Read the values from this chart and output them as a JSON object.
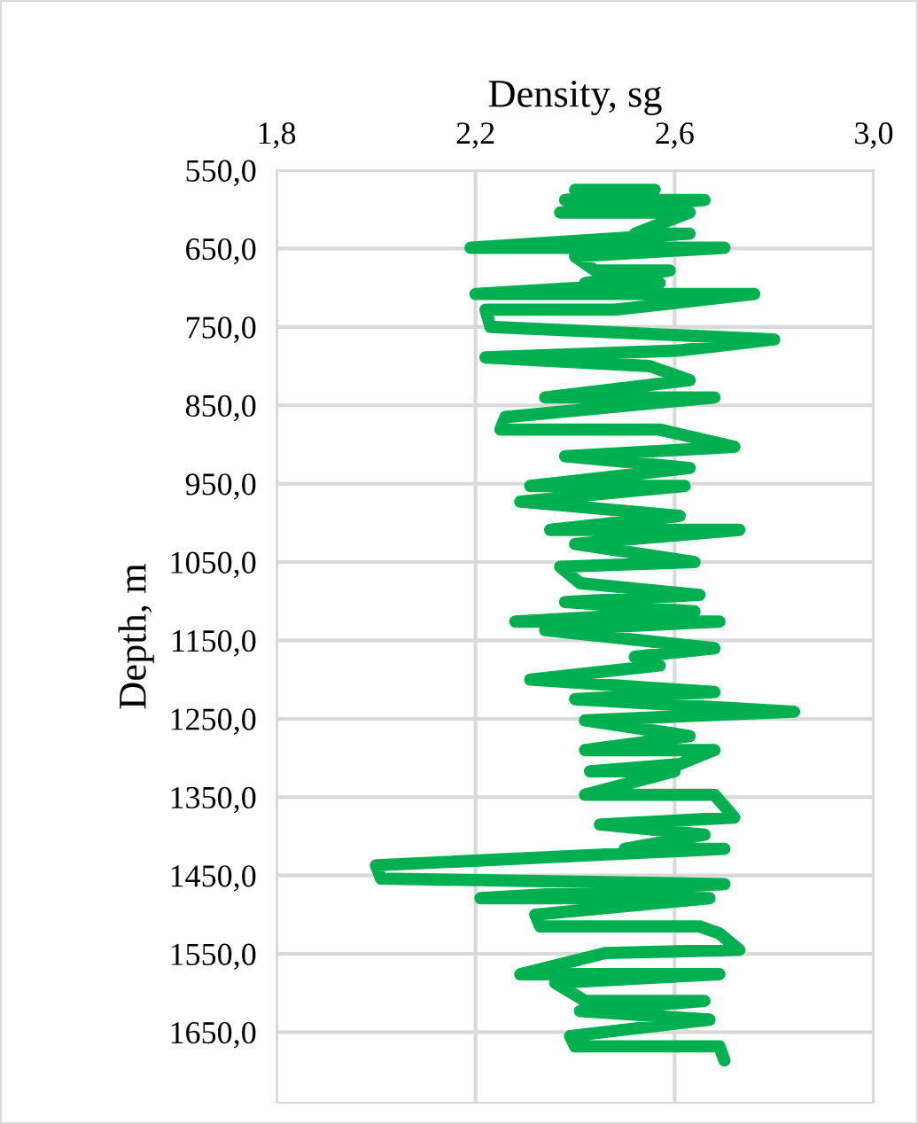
{
  "chart_data": {
    "type": "line",
    "xlabel": "Density, sg",
    "ylabel": "Depth, m",
    "xlim": [
      1.8,
      3.0
    ],
    "xticks": [
      {
        "value": 1.8,
        "label": "1,8"
      },
      {
        "value": 2.2,
        "label": "2,2"
      },
      {
        "value": 2.6,
        "label": "2,6"
      },
      {
        "value": 3.0,
        "label": "3,0"
      }
    ],
    "ylim": [
      1740,
      550
    ],
    "yticks": [
      {
        "value": 550,
        "label": "550,0"
      },
      {
        "value": 650,
        "label": "650,0"
      },
      {
        "value": 750,
        "label": "750,0"
      },
      {
        "value": 850,
        "label": "850,0"
      },
      {
        "value": 950,
        "label": "950,0"
      },
      {
        "value": 1050,
        "label": "1050,0"
      },
      {
        "value": 1150,
        "label": "1150,0"
      },
      {
        "value": 1250,
        "label": "1250,0"
      },
      {
        "value": 1350,
        "label": "1350,0"
      },
      {
        "value": 1450,
        "label": "1450,0"
      },
      {
        "value": 1550,
        "label": "1550,0"
      },
      {
        "value": 1650,
        "label": "1650,0"
      }
    ],
    "grid": true,
    "legend": false,
    "marker": "none",
    "line_style": "solid",
    "series": [
      {
        "color": "#00b050",
        "x": [
          2.4,
          2.56,
          2.38,
          2.66,
          2.37,
          2.63,
          2.52,
          2.63,
          2.19,
          2.7,
          2.4,
          2.44,
          2.59,
          2.42,
          2.57,
          2.2,
          2.76,
          2.48,
          2.22,
          2.23,
          2.8,
          2.61,
          2.22,
          2.55,
          2.63,
          2.34,
          2.68,
          2.26,
          2.25,
          2.57,
          2.72,
          2.38,
          2.63,
          2.31,
          2.62,
          2.29,
          2.61,
          2.35,
          2.73,
          2.4,
          2.64,
          2.37,
          2.41,
          2.65,
          2.38,
          2.64,
          2.28,
          2.69,
          2.34,
          2.68,
          2.52,
          2.57,
          2.31,
          2.68,
          2.4,
          2.84,
          2.42,
          2.63,
          2.42,
          2.68,
          2.61,
          2.43,
          2.6,
          2.42,
          2.68,
          2.72,
          2.45,
          2.66,
          2.5,
          2.7,
          2.0,
          2.01,
          2.7,
          2.21,
          2.67,
          2.32,
          2.33,
          2.65,
          2.69,
          2.73,
          2.46,
          2.29,
          2.69,
          2.36,
          2.42,
          2.66,
          2.41,
          2.67,
          2.39,
          2.4,
          2.69,
          2.7
        ],
        "values": [
          575,
          575,
          588,
          588,
          604,
          604,
          631,
          631,
          649,
          649,
          660,
          678,
          678,
          694,
          694,
          708,
          708,
          728,
          728,
          750,
          766,
          780,
          789,
          800,
          818,
          840,
          840,
          865,
          881,
          881,
          903,
          915,
          930,
          953,
          953,
          973,
          991,
          1009,
          1009,
          1027,
          1050,
          1056,
          1077,
          1092,
          1101,
          1113,
          1126,
          1126,
          1137,
          1160,
          1171,
          1182,
          1200,
          1216,
          1225,
          1241,
          1252,
          1272,
          1290,
          1290,
          1308,
          1317,
          1317,
          1347,
          1347,
          1376,
          1385,
          1398,
          1416,
          1416,
          1437,
          1454,
          1461,
          1479,
          1479,
          1500,
          1515,
          1515,
          1524,
          1545,
          1549,
          1576,
          1576,
          1587,
          1610,
          1610,
          1623,
          1634,
          1655,
          1668,
          1668,
          1686
        ]
      }
    ]
  }
}
